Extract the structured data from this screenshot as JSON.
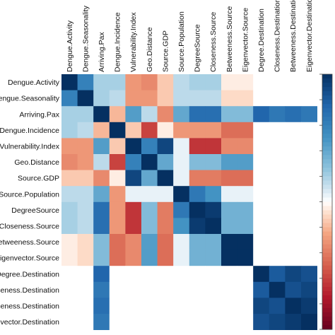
{
  "chart_data": {
    "type": "heatmap",
    "row_labels": [
      "Dengue.Activity",
      "Dengue.Seasonality",
      "Arriving.Pax",
      "Dengue.Incidence",
      "Vulnerability.Index",
      "Geo.Distance",
      "Source.GDP",
      "Source.Population",
      "DegreeSource",
      "Closeness.Source",
      "Betweeness.Source",
      "Eigenvector.Source",
      "Degree.Destination",
      "Closeness.Destination",
      "Betweeness.Destination",
      "Eigenvector.Destination"
    ],
    "col_labels": [
      "Dengue.Activity",
      "Dengue.Seasonality",
      "Arriving.Pax",
      "Dengue.Incidence",
      "Vulnerability.Index",
      "Geo.Distance",
      "Source.GDP",
      "Source.Population",
      "DegreeSource",
      "Closeness.Source",
      "Betweeness.Source",
      "Eigenvector.Source",
      "Degree.Destination",
      "Closeness.Destination",
      "Betweeness.Destination",
      "Eigenvector.Destination"
    ],
    "value_range": [
      -1,
      1
    ],
    "colorscale": "red-white-blue",
    "legend": "right colorbar",
    "values": [
      [
        1.0,
        0.6,
        0.2,
        0.2,
        -0.3,
        -0.35,
        -0.15,
        0.15,
        0.2,
        0.2,
        -0.05,
        -0.05,
        0.0,
        0.0,
        0.0,
        0.0
      ],
      [
        0.6,
        1.0,
        0.2,
        0.15,
        -0.3,
        -0.3,
        -0.15,
        0.15,
        0.15,
        0.15,
        -0.1,
        -0.1,
        0.0,
        0.0,
        0.0,
        0.0
      ],
      [
        0.2,
        0.2,
        1.0,
        -0.2,
        0.45,
        0.15,
        -0.35,
        0.4,
        0.7,
        0.7,
        0.3,
        0.3,
        0.75,
        0.65,
        0.7,
        0.65
      ],
      [
        0.2,
        0.15,
        -0.2,
        1.0,
        -0.15,
        -0.6,
        -0.05,
        -0.3,
        -0.3,
        -0.3,
        -0.45,
        -0.45,
        0.0,
        0.0,
        0.0,
        0.0
      ],
      [
        -0.3,
        -0.3,
        0.45,
        -0.15,
        1.0,
        0.6,
        0.9,
        0.05,
        -0.65,
        -0.65,
        -0.35,
        -0.35,
        0.0,
        0.0,
        0.0,
        0.0
      ],
      [
        -0.35,
        -0.3,
        0.15,
        -0.6,
        0.6,
        1.0,
        0.4,
        0.05,
        0.3,
        0.3,
        0.45,
        0.45,
        0.0,
        0.0,
        0.0,
        0.0
      ],
      [
        -0.15,
        -0.15,
        -0.35,
        -0.05,
        0.9,
        0.4,
        1.0,
        0.05,
        -0.4,
        -0.4,
        -0.45,
        -0.45,
        0.0,
        0.0,
        0.0,
        0.0
      ],
      [
        0.15,
        0.15,
        0.4,
        -0.3,
        0.05,
        0.05,
        0.05,
        1.0,
        0.65,
        0.5,
        0.05,
        0.05,
        0.0,
        0.0,
        0.0,
        0.0
      ],
      [
        0.2,
        0.15,
        0.7,
        -0.3,
        -0.65,
        0.3,
        -0.4,
        0.65,
        1.0,
        0.95,
        0.35,
        0.35,
        0.0,
        0.0,
        0.0,
        0.0
      ],
      [
        0.2,
        0.15,
        0.7,
        -0.3,
        -0.65,
        0.3,
        -0.4,
        0.5,
        0.95,
        1.0,
        0.35,
        0.35,
        0.0,
        0.0,
        0.0,
        0.0
      ],
      [
        -0.05,
        -0.1,
        0.3,
        -0.45,
        -0.35,
        0.45,
        -0.45,
        0.05,
        0.35,
        0.35,
        1.0,
        1.0,
        0.0,
        0.0,
        0.0,
        0.0
      ],
      [
        -0.05,
        -0.1,
        0.3,
        -0.45,
        -0.35,
        0.45,
        -0.45,
        0.05,
        0.35,
        0.35,
        1.0,
        1.0,
        0.0,
        0.0,
        0.0,
        0.0
      ],
      [
        0.0,
        0.0,
        0.75,
        0.0,
        0.0,
        0.0,
        0.0,
        0.0,
        0.0,
        0.0,
        0.0,
        0.0,
        1.0,
        0.8,
        0.9,
        0.85
      ],
      [
        0.0,
        0.0,
        0.65,
        0.0,
        0.0,
        0.0,
        0.0,
        0.0,
        0.0,
        0.0,
        0.0,
        0.0,
        0.8,
        1.0,
        0.85,
        0.9
      ],
      [
        0.0,
        0.0,
        0.7,
        0.0,
        0.0,
        0.0,
        0.0,
        0.0,
        0.0,
        0.0,
        0.0,
        0.0,
        0.9,
        0.85,
        1.0,
        0.95
      ],
      [
        0.0,
        0.0,
        0.65,
        0.0,
        0.0,
        0.0,
        0.0,
        0.0,
        0.0,
        0.0,
        0.0,
        0.0,
        0.85,
        0.9,
        0.95,
        1.0
      ]
    ]
  }
}
